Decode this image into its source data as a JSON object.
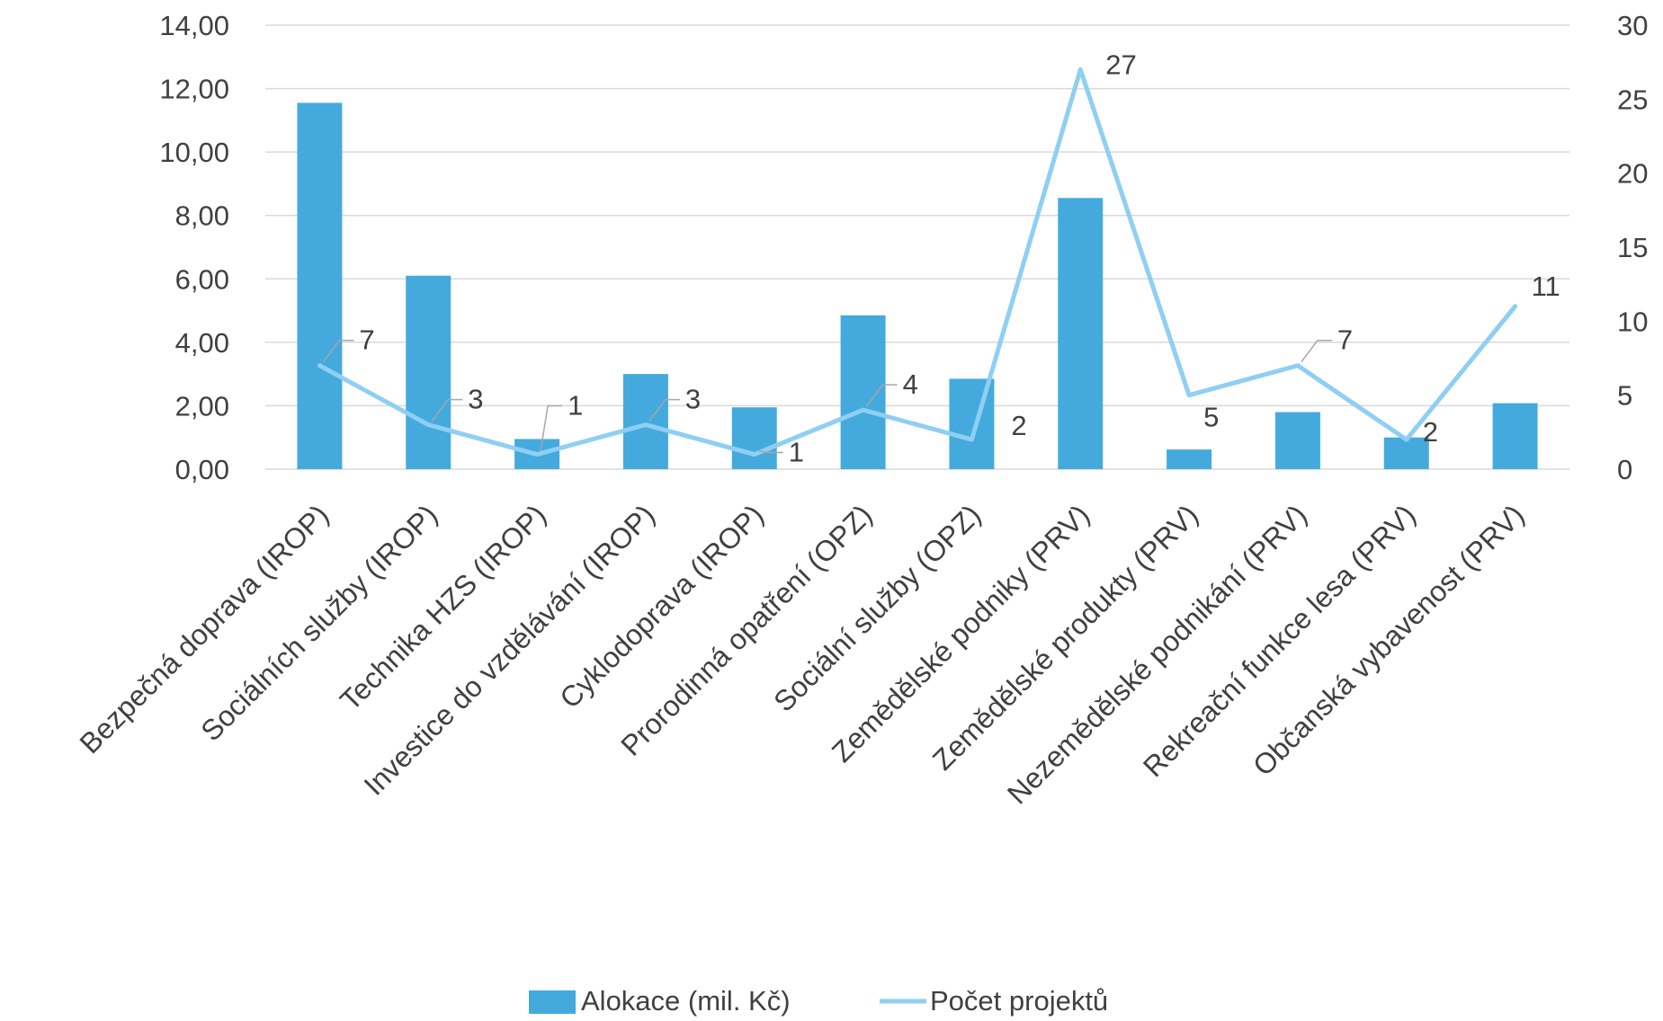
{
  "chart_data": {
    "type": "bar",
    "categories": [
      "Bezpečná doprava (IROP)",
      "Sociálních služby (IROP)",
      "Technika HZS (IROP)",
      "Investice do vzdělávání (IROP)",
      "Cyklodoprava (IROP)",
      "Prorodinná opatření  (OPZ)",
      "Sociální služby (OPZ)",
      "Zemědělské podniky (PRV)",
      "Zemědělské produkty (PRV)",
      "Nezemědělské podnikání (PRV)",
      "Rekreační funkce lesa (PRV)",
      "Občanská vybavenost (PRV)"
    ],
    "series": [
      {
        "name": "Alokace (mil. Kč)",
        "type": "bar",
        "axis": "left",
        "color": "#44AADD",
        "values": [
          11.55,
          6.1,
          0.95,
          3.0,
          1.95,
          4.85,
          2.85,
          8.55,
          0.62,
          1.8,
          1.0,
          2.08
        ]
      },
      {
        "name": "Počet projektů",
        "type": "line",
        "axis": "right",
        "color": "#8ECFF3",
        "values": [
          7,
          3,
          1,
          3,
          1,
          4,
          2,
          27,
          5,
          7,
          2,
          11
        ],
        "labels": [
          "7",
          "3",
          "1",
          "3",
          "1",
          "4",
          "2",
          "27",
          "5",
          "7",
          "2",
          "11"
        ]
      }
    ],
    "y_left": {
      "ylim": [
        0,
        14
      ],
      "ticks": [
        0,
        2,
        4,
        6,
        8,
        10,
        12,
        14
      ],
      "tick_labels": [
        "0,00",
        "2,00",
        "4,00",
        "6,00",
        "8,00",
        "10,00",
        "12,00",
        "14,00"
      ]
    },
    "y_right": {
      "ylim": [
        0,
        30
      ],
      "ticks": [
        0,
        5,
        10,
        15,
        20,
        25,
        30
      ],
      "tick_labels": [
        "0",
        "5",
        "10",
        "15",
        "20",
        "25",
        "30"
      ]
    },
    "grid": true,
    "legend_position": "bottom",
    "gridline_color": "#D9D9D9"
  }
}
